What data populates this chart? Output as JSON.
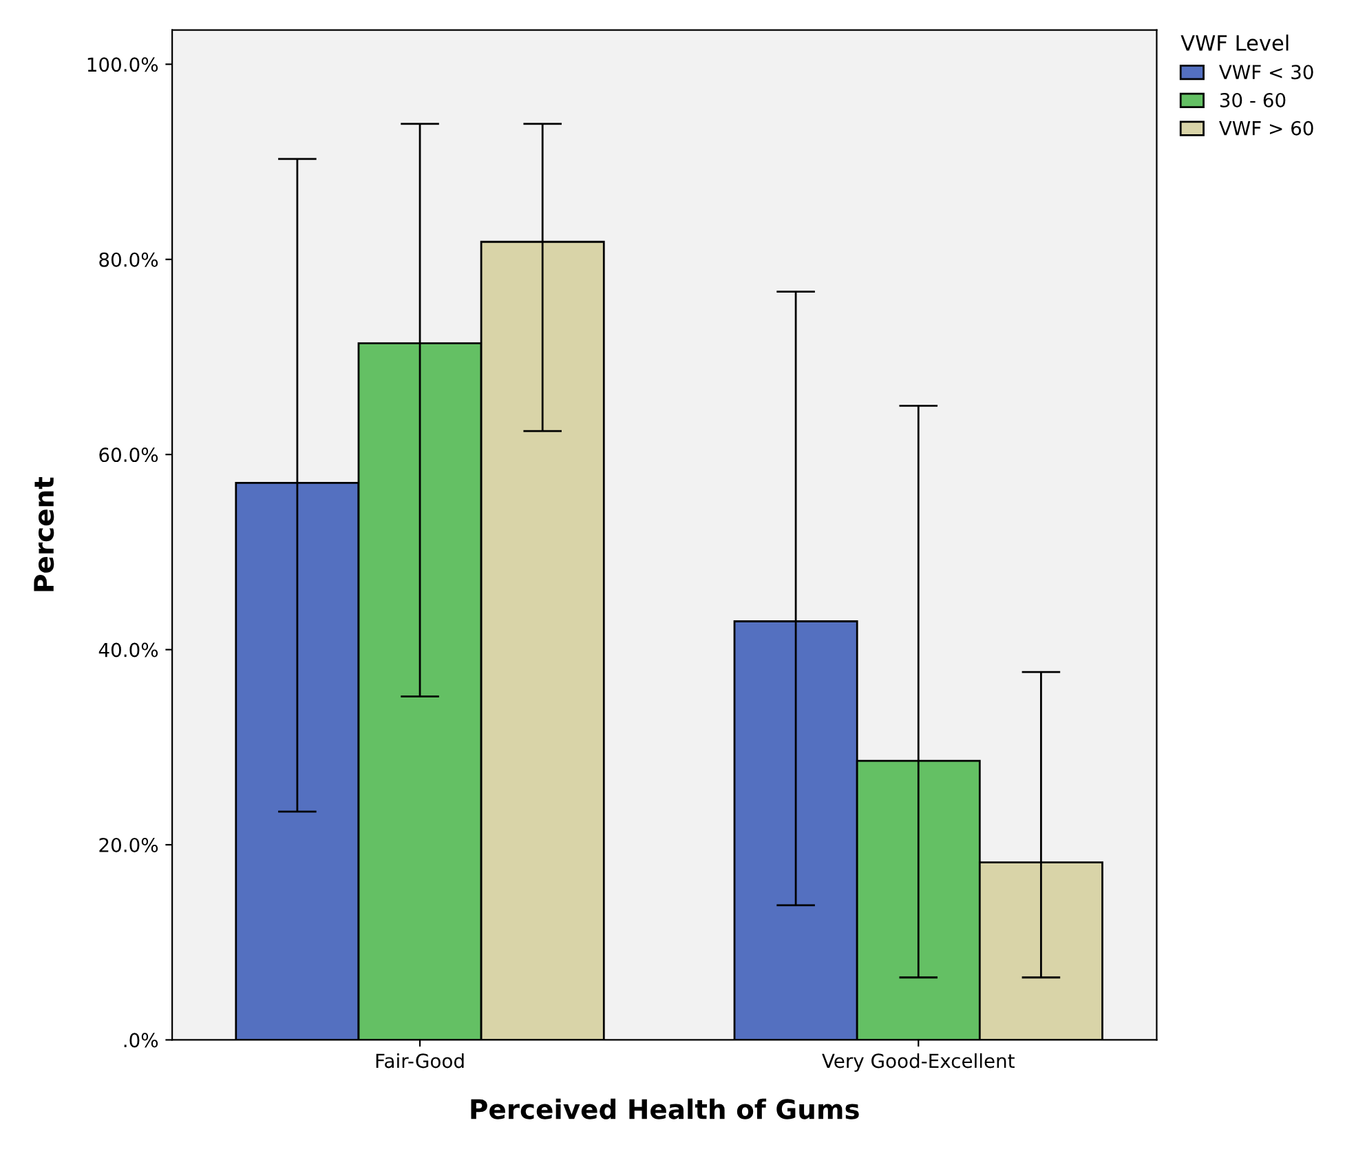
{
  "chart_data": {
    "type": "bar",
    "xlabel": "Perceived Health of Gums",
    "ylabel": "Percent",
    "legend_title": "VWF Level",
    "legend": "top right",
    "grid": false,
    "categories": [
      "Fair-Good",
      "Very Good-Excellent"
    ],
    "series": [
      {
        "name": "VWF < 30",
        "color": "#5470c0",
        "values": [
          57.1,
          42.9
        ],
        "errors": [
          [
            23.4,
            90.3
          ],
          [
            13.8,
            76.7
          ]
        ]
      },
      {
        "name": "30 - 60",
        "color": "#64c064",
        "values": [
          71.4,
          28.6
        ],
        "errors": [
          [
            35.2,
            93.9
          ],
          [
            6.4,
            65.0
          ]
        ]
      },
      {
        "name": "VWF > 60",
        "color": "#d9d4a8",
        "values": [
          81.8,
          18.2
        ],
        "errors": [
          [
            62.4,
            93.9
          ],
          [
            6.4,
            37.7
          ]
        ]
      }
    ],
    "ylim": [
      0,
      103.5
    ],
    "yticks": [
      {
        "value": 0,
        "label": ".0%"
      },
      {
        "value": 20,
        "label": "20.0%"
      },
      {
        "value": 40,
        "label": "40.0%"
      },
      {
        "value": 60,
        "label": "60.0%"
      },
      {
        "value": 80,
        "label": "80.0%"
      },
      {
        "value": 100,
        "label": "100.0%"
      }
    ]
  }
}
